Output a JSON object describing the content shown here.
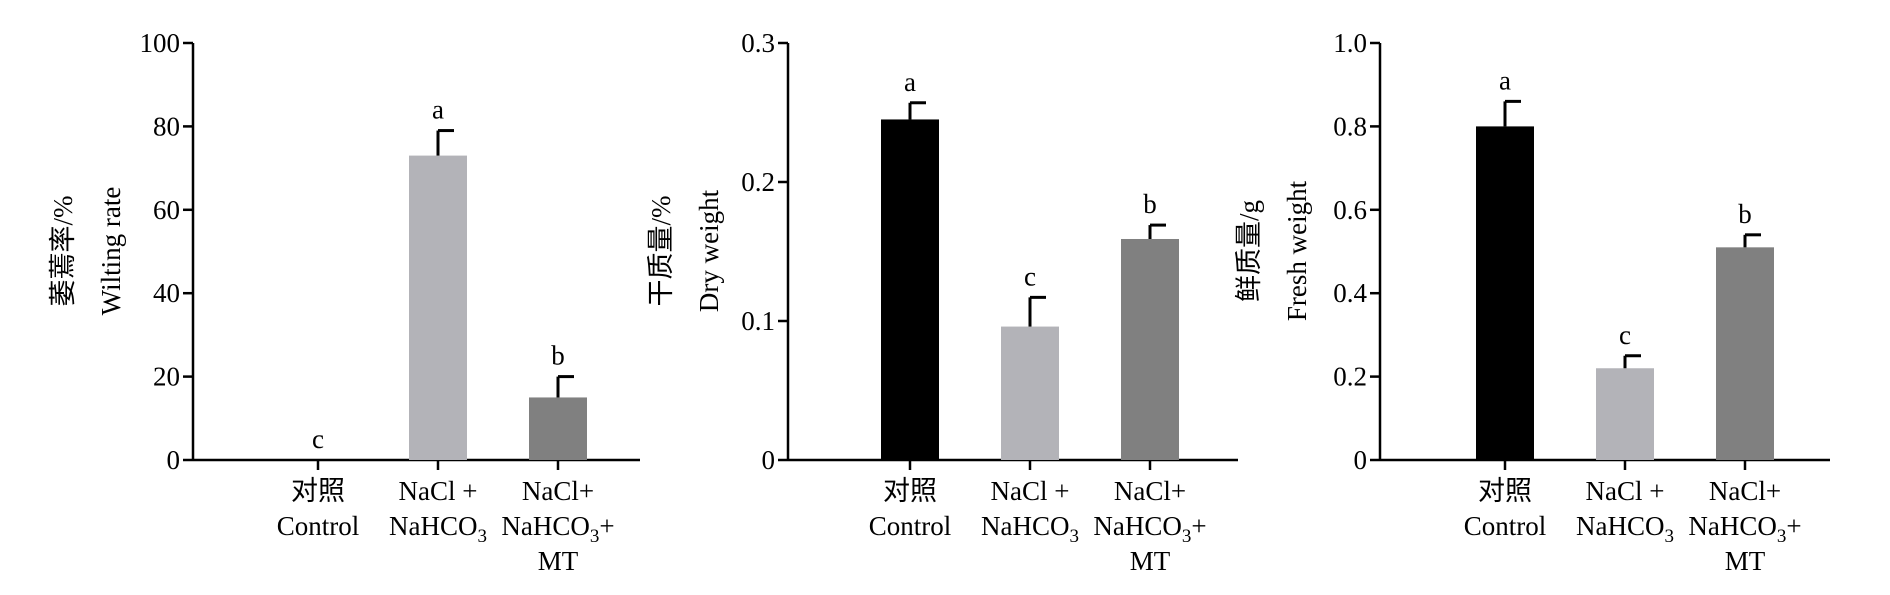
{
  "chart_data": [
    {
      "type": "bar",
      "ylabel_cn": "萎蔫率/%",
      "ylabel_en": "Wilting rate",
      "ylim": [
        0,
        100
      ],
      "yticks": [
        "0",
        "20",
        "40",
        "60",
        "80",
        "100"
      ],
      "categories": [
        {
          "line1": "对照",
          "line2": "Control",
          "line3": ""
        },
        {
          "line1": "NaCl +",
          "line2": "NaHCO",
          "line2_sub": "3",
          "line3": ""
        },
        {
          "line1": "NaCl+",
          "line2": "NaHCO",
          "line2_sub": "3",
          "line2_after": "+",
          "line3": "MT"
        }
      ],
      "values": [
        0,
        73,
        15
      ],
      "errors": [
        0,
        6,
        5
      ],
      "significance": [
        "c",
        "a",
        "b"
      ],
      "colors": [
        "#000000",
        "#b3b3b8",
        "#808080"
      ]
    },
    {
      "type": "bar",
      "ylabel_cn": "干质量/%",
      "ylabel_en": "Dry weight",
      "ylim": [
        0,
        0.3
      ],
      "yticks": [
        "0",
        "0.1",
        "0.2",
        "0.3"
      ],
      "categories": [
        {
          "line1": "对照",
          "line2": "Control",
          "line3": ""
        },
        {
          "line1": "NaCl +",
          "line2": "NaHCO",
          "line2_sub": "3",
          "line3": ""
        },
        {
          "line1": "NaCl+",
          "line2": "NaHCO",
          "line2_sub": "3",
          "line2_after": "+",
          "line3": "MT"
        }
      ],
      "values": [
        0.245,
        0.096,
        0.159
      ],
      "errors": [
        0.012,
        0.021,
        0.01
      ],
      "significance": [
        "a",
        "c",
        "b"
      ],
      "colors": [
        "#000000",
        "#b3b3b8",
        "#808080"
      ]
    },
    {
      "type": "bar",
      "ylabel_cn": "鲜质量/g",
      "ylabel_en": "Fresh weight",
      "ylim": [
        0,
        1.0
      ],
      "yticks": [
        "0",
        "0.2",
        "0.4",
        "0.6",
        "0.8",
        "1.0"
      ],
      "categories": [
        {
          "line1": "对照",
          "line2": "Control",
          "line3": ""
        },
        {
          "line1": "NaCl +",
          "line2": "NaHCO",
          "line2_sub": "3",
          "line3": ""
        },
        {
          "line1": "NaCl+",
          "line2": "NaHCO",
          "line2_sub": "3",
          "line2_after": "+",
          "line3": "MT"
        }
      ],
      "values": [
        0.8,
        0.22,
        0.51
      ],
      "errors": [
        0.06,
        0.03,
        0.03
      ],
      "significance": [
        "a",
        "c",
        "b"
      ],
      "colors": [
        "#000000",
        "#b3b3b8",
        "#808080"
      ]
    }
  ]
}
